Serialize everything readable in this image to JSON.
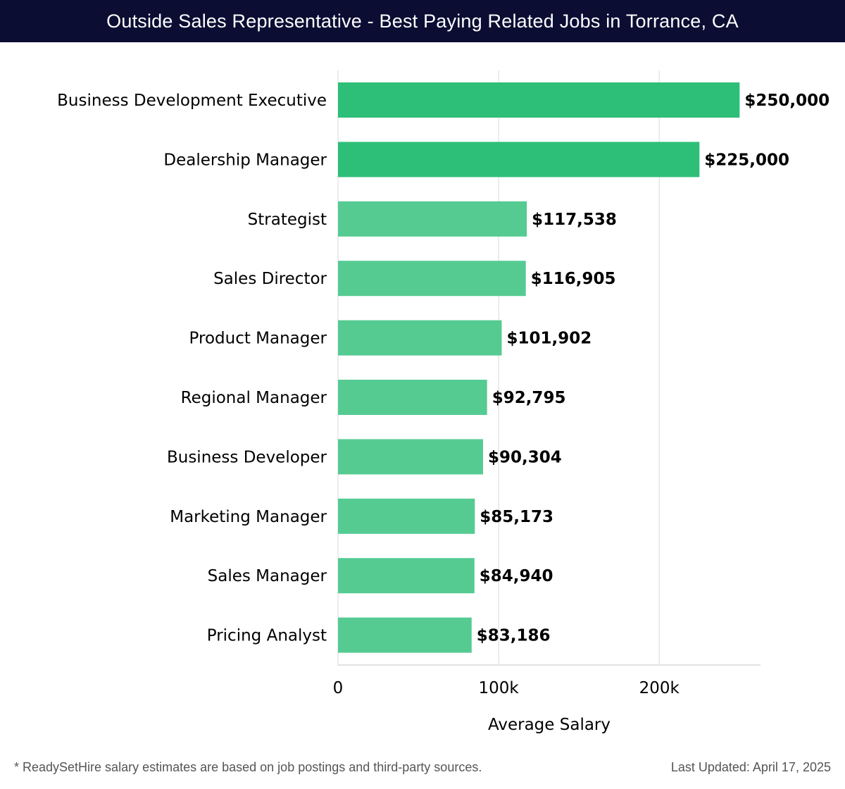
{
  "header": {
    "title": "Outside Sales Representative - Best Paying Related Jobs in Torrance, CA"
  },
  "colors": {
    "header_bg": "#0b0d33",
    "bar_top": "#2dbf78",
    "bar_rest": "#55cb92",
    "grid": "#e6e6e6",
    "label": "#000000"
  },
  "chart_data": {
    "type": "bar",
    "orientation": "horizontal",
    "categories": [
      "Business Development Executive",
      "Dealership Manager",
      "Strategist",
      "Sales Director",
      "Product Manager",
      "Regional Manager",
      "Business Developer",
      "Marketing Manager",
      "Sales Manager",
      "Pricing Analyst"
    ],
    "values": [
      250000,
      225000,
      117538,
      116905,
      101902,
      92795,
      90304,
      85173,
      84940,
      83186
    ],
    "value_labels": [
      "$250,000",
      "$225,000",
      "$117,538",
      "$116,905",
      "$101,902",
      "$92,795",
      "$90,304",
      "$85,173",
      "$84,940",
      "$83,186"
    ],
    "xlabel": "Average Salary",
    "ylabel": "",
    "xlim": [
      0,
      263000
    ],
    "xticks": [
      0,
      100000,
      200000
    ],
    "xtick_labels": [
      "0",
      "100k",
      "200k"
    ],
    "grid": "vertical",
    "legend": "none"
  },
  "footer": {
    "note": "* ReadySetHire salary estimates are based on job postings and third-party sources.",
    "updated": "Last Updated: April 17, 2025"
  }
}
